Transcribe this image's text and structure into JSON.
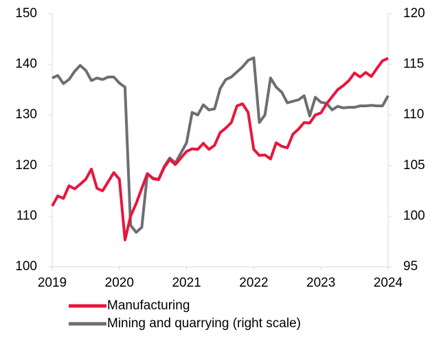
{
  "chart_data": {
    "type": "line",
    "categories": [
      "2019",
      null,
      null,
      null,
      null,
      null,
      null,
      null,
      null,
      null,
      null,
      null,
      "2020",
      null,
      null,
      null,
      null,
      null,
      null,
      null,
      null,
      null,
      null,
      null,
      "2021",
      null,
      null,
      null,
      null,
      null,
      null,
      null,
      null,
      null,
      null,
      null,
      "2022",
      null,
      null,
      null,
      null,
      null,
      null,
      null,
      null,
      null,
      null,
      null,
      "2023",
      null,
      null,
      null,
      null,
      null,
      null,
      null,
      null,
      null,
      null,
      null,
      "2024"
    ],
    "ylim": [
      100,
      150
    ],
    "yticks": [
      100,
      110,
      120,
      130,
      140,
      150
    ],
    "y2lim": [
      95,
      120
    ],
    "y2ticks": [
      95,
      100,
      105,
      110,
      115,
      120
    ],
    "grid": false,
    "series": [
      {
        "name": "Manufacturing",
        "color": "#e8163c",
        "values": [
          112,
          114,
          113.5,
          116,
          115.4,
          116.3,
          117.3,
          119.3,
          115.5,
          115,
          116.8,
          118.6,
          117.3,
          105.3,
          110,
          112.5,
          115.5,
          118.4,
          117.4,
          117.2,
          119.6,
          121.2,
          120.2,
          121.5,
          122.8,
          123.3,
          123.2,
          124.4,
          123.2,
          124,
          126.5,
          127.4,
          128.5,
          131.8,
          132.2,
          130.5,
          123.2,
          122,
          122.1,
          121.3,
          124.5,
          123.8,
          123.5,
          126.2,
          127.2,
          128.5,
          128.4,
          130,
          130.4,
          132.2,
          133.6,
          135,
          135.8,
          136.8,
          138.3,
          137.5,
          138.4,
          137.6,
          139.2,
          140.7,
          141.2
        ]
      },
      {
        "name": "Mining and quarrying (right scale)",
        "color": "#6d6e71",
        "axis": "y2",
        "values": [
          113.65,
          113.9,
          113.1,
          113.5,
          114.3,
          114.9,
          114.4,
          113.4,
          113.65,
          113.5,
          113.75,
          113.75,
          113.15,
          112.75,
          99.1,
          98.4,
          98.9,
          104.2,
          103.75,
          103.65,
          104.9,
          105.75,
          105.25,
          106.25,
          107.25,
          110.25,
          110,
          111,
          110.5,
          110.6,
          112.6,
          113.5,
          113.75,
          114.25,
          114.75,
          115.4,
          115.65,
          109.25,
          110,
          113.65,
          112.75,
          112.25,
          111.2,
          111.35,
          111.5,
          111.9,
          109.9,
          111.75,
          111.25,
          111.15,
          110.5,
          110.85,
          110.7,
          110.75,
          110.75,
          110.9,
          110.9,
          110.95,
          110.9,
          110.9,
          111.9
        ]
      }
    ]
  }
}
